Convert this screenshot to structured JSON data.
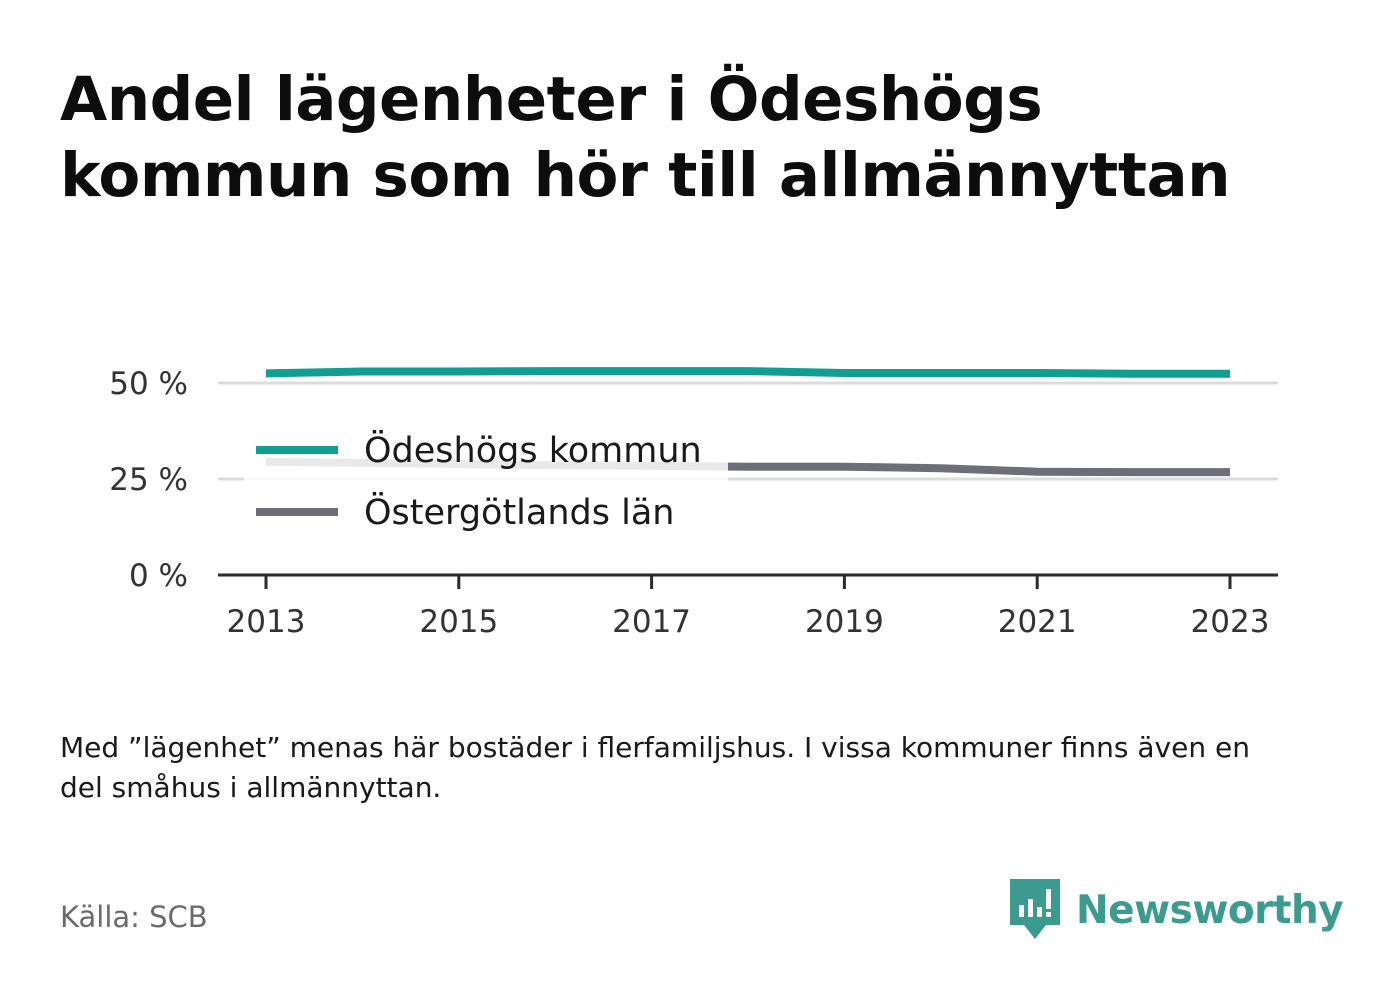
{
  "title": "Andel lägenheter i Ödeshögs kommun som hör till allmännyttan",
  "footnote": "Med ”lägenhet” menas här bostäder i flerfamiljshus. I vissa kommuner finns även en del småhus i allmännyttan.",
  "source": "Källa: SCB",
  "logo_text": "Newsworthy",
  "colors": {
    "odeshog": "#0f9e91",
    "ostergotland": "#6e6e78",
    "grid": "#dcdcdc",
    "axis": "#2b2b2b",
    "brand": "#3d9a8f"
  },
  "chart_data": {
    "type": "line",
    "title": "Andel lägenheter i Ödeshögs kommun som hör till allmännyttan",
    "xlabel": "",
    "ylabel": "",
    "x": [
      2013,
      2014,
      2015,
      2016,
      2017,
      2018,
      2019,
      2020,
      2021,
      2022,
      2023
    ],
    "x_ticks": [
      "2013",
      "2015",
      "2017",
      "2019",
      "2021",
      "2023"
    ],
    "x_tick_values": [
      2013,
      2015,
      2017,
      2019,
      2021,
      2023
    ],
    "y_ticks": [
      "0 %",
      "25 %",
      "50 %"
    ],
    "y_tick_values": [
      0,
      25,
      50
    ],
    "ylim": [
      0,
      50
    ],
    "grid": true,
    "legend_placement": "inside-left",
    "series": [
      {
        "name": "Ödeshögs kommun",
        "color": "#0f9e91",
        "values": [
          52.5,
          53.0,
          53.0,
          53.1,
          53.1,
          53.1,
          52.6,
          52.6,
          52.6,
          52.4,
          52.4
        ]
      },
      {
        "name": "Östergötlands län",
        "color": "#6e6e78",
        "values": [
          29.5,
          29.2,
          28.9,
          28.6,
          28.4,
          28.2,
          28.2,
          27.8,
          26.9,
          26.8,
          26.8
        ]
      }
    ]
  }
}
